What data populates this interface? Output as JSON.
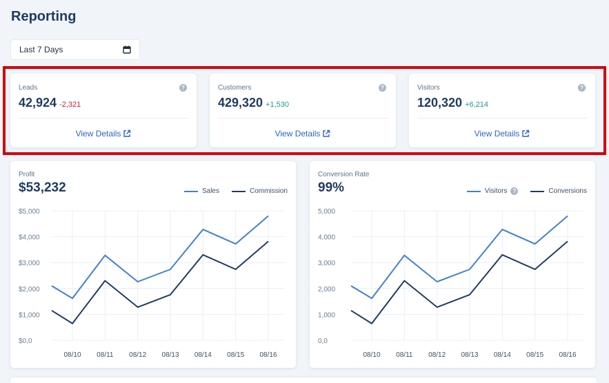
{
  "header": {
    "title": "Reporting"
  },
  "date_range": {
    "label": "Last 7 Days",
    "icon": "calendar-icon"
  },
  "stats": [
    {
      "label": "Leads",
      "value": "42,924",
      "delta": "-2,321",
      "delta_sign": "neg",
      "link": "View Details"
    },
    {
      "label": "Customers",
      "value": "429,320",
      "delta": "+1,530",
      "delta_sign": "pos",
      "link": "View Details"
    },
    {
      "label": "Visitors",
      "value": "120,320",
      "delta": "+6,214",
      "delta_sign": "pos",
      "link": "View Details"
    }
  ],
  "help_glyph": "?",
  "colors": {
    "series_a": "#3f7fd6",
    "series_b": "#1f3b63",
    "negative": "#d0202e",
    "positive": "#1f9a8f",
    "highlight": "#d4000b"
  },
  "chart_data": [
    {
      "type": "line",
      "title": "Profit",
      "headline": "$53,232",
      "categories": [
        "08/10",
        "08/11",
        "08/12",
        "08/13",
        "08/14",
        "08/15",
        "08/16"
      ],
      "x_lead": 2100,
      "x_lead_b": 1150,
      "ylim": [
        0,
        5000
      ],
      "yticks": [
        "$0,0",
        "$1,000",
        "$2,000",
        "$3,000",
        "$4,000",
        "$5,000"
      ],
      "grid": true,
      "legend_position": "top-right",
      "series": [
        {
          "name": "Sales",
          "values": [
            1620,
            3280,
            2260,
            2740,
            4280,
            3720,
            4800
          ]
        },
        {
          "name": "Commission",
          "values": [
            650,
            2300,
            1280,
            1760,
            3300,
            2740,
            3820
          ]
        }
      ]
    },
    {
      "type": "line",
      "title": "Conversion Rate",
      "headline": "99%",
      "categories": [
        "08/10",
        "08/11",
        "08/12",
        "08/13",
        "08/14",
        "08/15",
        "08/16"
      ],
      "x_lead": 2100,
      "x_lead_b": 1150,
      "ylim": [
        0,
        5000
      ],
      "yticks": [
        "0,0",
        "1,000",
        "2,000",
        "3,000",
        "4,000",
        "5,000"
      ],
      "grid": true,
      "legend_position": "top-right",
      "series": [
        {
          "name": "Visitors",
          "values": [
            1620,
            3280,
            2260,
            2740,
            4280,
            3720,
            4800
          ],
          "has_help": true
        },
        {
          "name": "Conversions",
          "values": [
            650,
            2300,
            1280,
            1760,
            3300,
            2740,
            3820
          ]
        }
      ]
    }
  ]
}
